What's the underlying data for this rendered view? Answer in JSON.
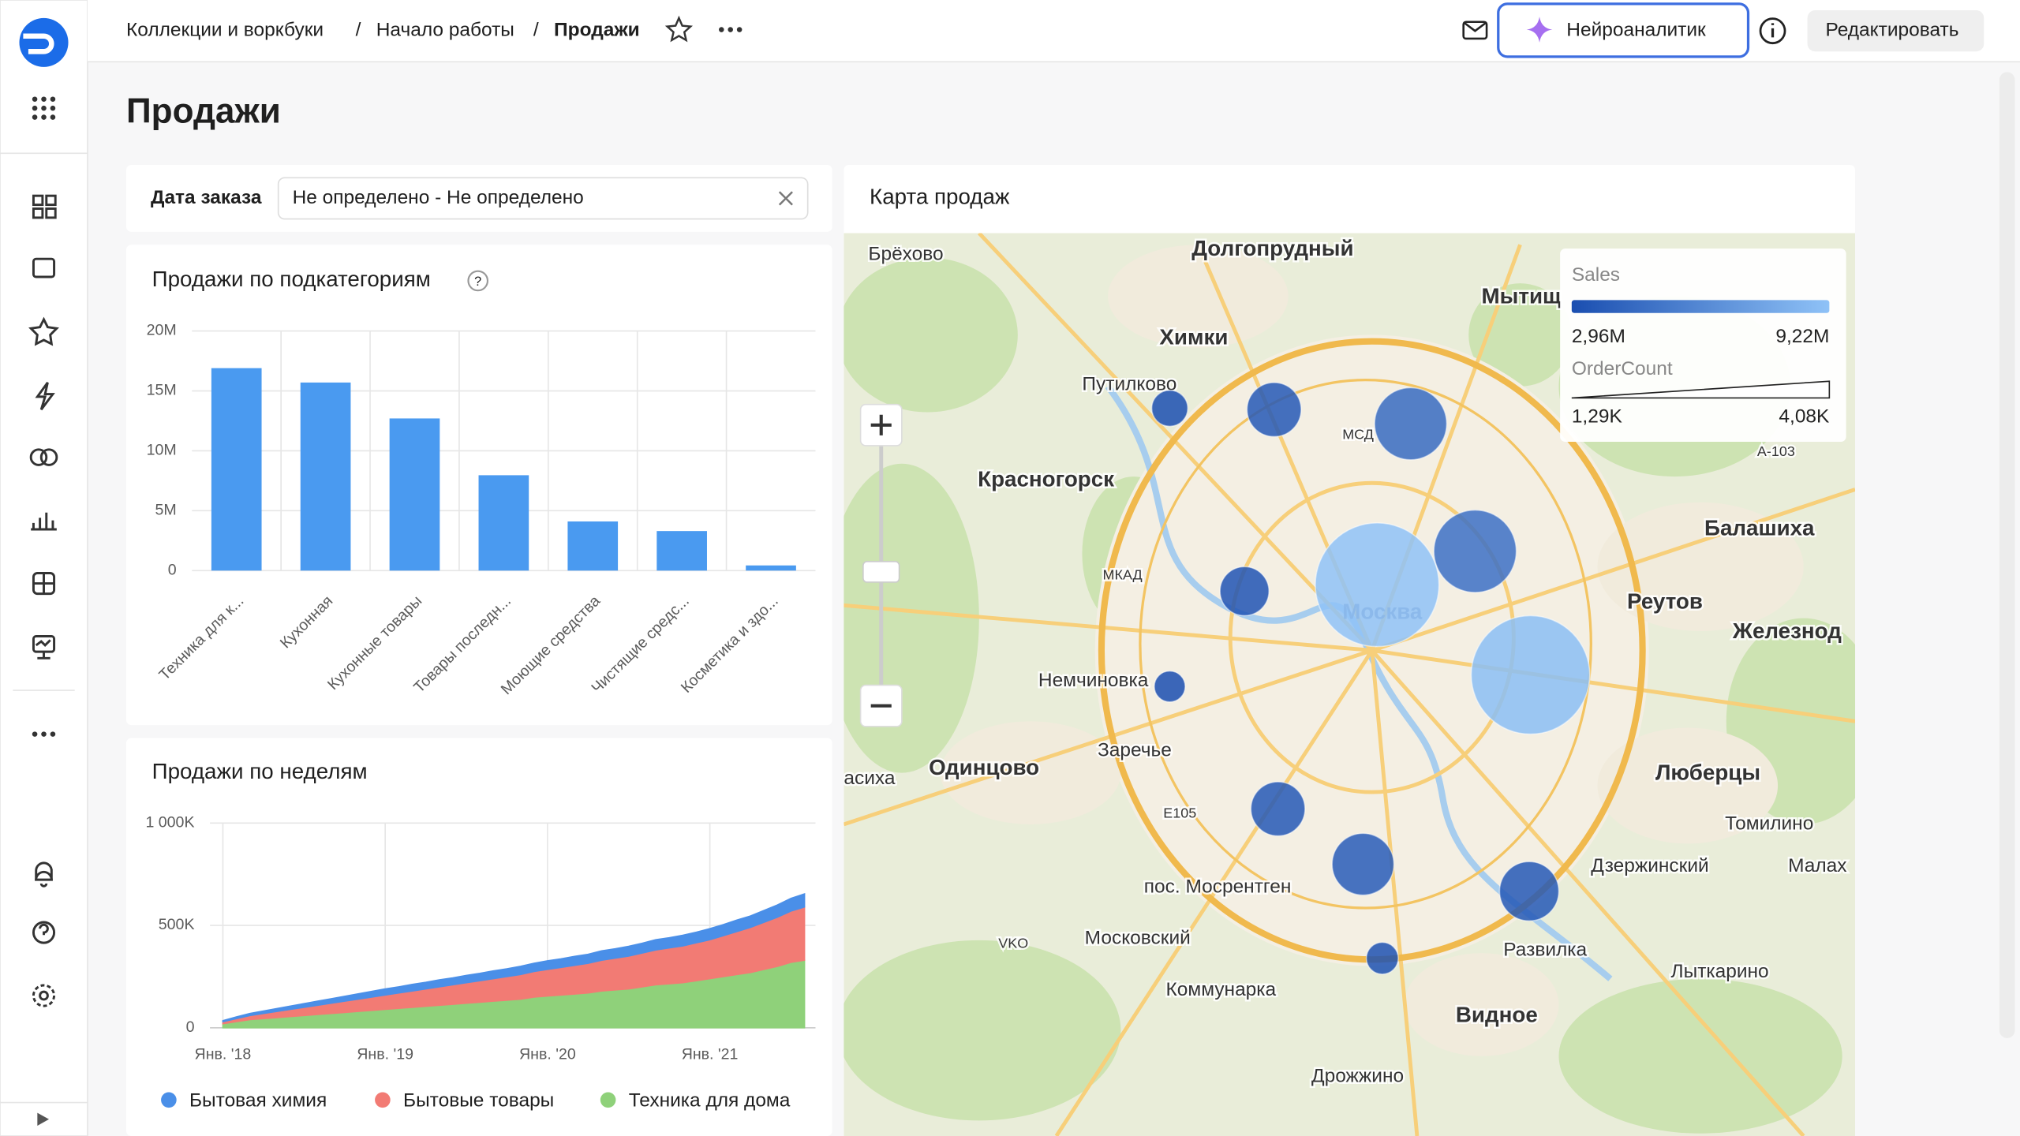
{
  "header": {
    "breadcrumbs": [
      "Коллекции и воркбуки",
      "Начало работы",
      "Продажи"
    ],
    "ai_button": "Нейроаналитик",
    "edit_button": "Редактировать"
  },
  "page_title": "Продажи",
  "filter": {
    "label": "Дата заказа",
    "value": "Не определено - Не определено"
  },
  "chart_data": [
    {
      "type": "bar",
      "title": "Продажи по подкатегориям",
      "categories": [
        "Техника для к...",
        "Кухонная",
        "Кухонные товары",
        "Товары последн...",
        "Моющие средства",
        "Чистящие средс...",
        "Косметика и здо..."
      ],
      "values": [
        16900000,
        15700000,
        12700000,
        7960000,
        4100000,
        3300000,
        430000
      ],
      "color": "#4a9af0",
      "ylim": [
        0,
        20000000
      ],
      "yticks": [
        0,
        {
          "value": 5000000,
          "label": "5M"
        },
        {
          "value": 10000000,
          "label": "10M"
        },
        {
          "value": 15000000,
          "label": "15M"
        },
        {
          "value": 20000000,
          "label": "20M"
        }
      ],
      "grid": true
    },
    {
      "type": "stacked_area",
      "title": "Продажи по неделям",
      "x": [
        "2018-01",
        "2018-02",
        "2018-03",
        "2018-04",
        "2018-05",
        "2018-06",
        "2018-07",
        "2018-08",
        "2018-09",
        "2018-10",
        "2018-11",
        "2018-12",
        "2019-01",
        "2019-02",
        "2019-03",
        "2019-04",
        "2019-05",
        "2019-06",
        "2019-07",
        "2019-08",
        "2019-09",
        "2019-10",
        "2019-11",
        "2019-12",
        "2020-01",
        "2020-02",
        "2020-03",
        "2020-04",
        "2020-05",
        "2020-06",
        "2020-07",
        "2020-08",
        "2020-09",
        "2020-10",
        "2020-11",
        "2020-12",
        "2021-01",
        "2021-02",
        "2021-03",
        "2021-04",
        "2021-05",
        "2021-06",
        "2021-07",
        "2021-08"
      ],
      "series": [
        {
          "name": "Бытовая химия",
          "color": "#4a8fe8",
          "values": [
            5000,
            8000,
            10000,
            12000,
            14000,
            16000,
            18000,
            20000,
            22000,
            24000,
            26000,
            28000,
            30000,
            30000,
            32000,
            32000,
            34000,
            34000,
            36000,
            36000,
            38000,
            38000,
            40000,
            40000,
            42000,
            42000,
            44000,
            44000,
            46000,
            46000,
            48000,
            48000,
            50000,
            50000,
            52000,
            52000,
            54000,
            54000,
            56000,
            56000,
            58000,
            60000,
            62000,
            64000
          ]
        },
        {
          "name": "Бытовые товары",
          "color": "#f27b74",
          "values": [
            10000,
            15000,
            20000,
            25000,
            30000,
            35000,
            40000,
            45000,
            50000,
            55000,
            60000,
            65000,
            70000,
            75000,
            80000,
            85000,
            90000,
            95000,
            100000,
            105000,
            110000,
            115000,
            120000,
            125000,
            130000,
            135000,
            140000,
            145000,
            150000,
            155000,
            160000,
            165000,
            170000,
            175000,
            180000,
            185000,
            190000,
            200000,
            210000,
            220000,
            230000,
            240000,
            250000,
            260000
          ]
        },
        {
          "name": "Техника для дома",
          "color": "#8fd17a",
          "values": [
            20000,
            30000,
            40000,
            45000,
            50000,
            55000,
            60000,
            65000,
            70000,
            75000,
            80000,
            85000,
            90000,
            95000,
            100000,
            105000,
            110000,
            115000,
            120000,
            125000,
            130000,
            135000,
            140000,
            150000,
            155000,
            160000,
            165000,
            170000,
            180000,
            185000,
            190000,
            200000,
            210000,
            215000,
            220000,
            230000,
            240000,
            250000,
            260000,
            270000,
            285000,
            300000,
            320000,
            330000
          ]
        }
      ],
      "ylim": [
        0,
        1000000
      ],
      "yticks": [
        0,
        {
          "value": 500000,
          "label": "500K"
        },
        {
          "value": 1000000,
          "label": "1 000K"
        }
      ],
      "xticks": [
        {
          "value": "2018-01",
          "label": "Янв. '18"
        },
        {
          "value": "2019-01",
          "label": "Янв. '19"
        },
        {
          "value": "2020-01",
          "label": "Янв. '20"
        },
        {
          "value": "2021-01",
          "label": "Янв. '21"
        }
      ],
      "grid": true,
      "legend": "bottom"
    }
  ],
  "map": {
    "title": "Карта продаж",
    "legend": {
      "sales_title": "Sales",
      "sales_min": {
        "value": 2960000,
        "label": "2,96M"
      },
      "sales_max": {
        "value": 9220000,
        "label": "9,22M"
      },
      "orders_title": "OrderCount",
      "orders_min": {
        "value": 1290,
        "label": "1,29K"
      },
      "orders_max": {
        "value": 4080,
        "label": "4,08K"
      }
    },
    "bubbles": [
      {
        "sales": 3000000,
        "orders": 1445
      },
      {
        "sales": 3500000,
        "orders": 1988
      },
      {
        "sales": 4500000,
        "orders": 2530
      },
      {
        "sales": 4800000,
        "orders": 2840
      },
      {
        "sales": 9220000,
        "orders": 4080
      },
      {
        "sales": 9000000,
        "orders": 3925
      },
      {
        "sales": 3300000,
        "orders": 1833
      },
      {
        "sales": 2960000,
        "orders": 1290
      },
      {
        "sales": 3500000,
        "orders": 1988
      },
      {
        "sales": 3700000,
        "orders": 2220
      },
      {
        "sales": 3500000,
        "orders": 2143
      },
      {
        "sales": 3100000,
        "orders": 1320
      }
    ],
    "places": [
      "Брёхово",
      "Долгопрудный",
      "Мытищ",
      "Химки",
      "Путилково",
      "Красногорск",
      "Балашиха",
      "Реутов",
      "Железнод",
      "Немчиновка",
      "Заречье",
      "Одинцово",
      "Люберцы",
      "Томилино",
      "Дзержинский",
      "Малах",
      "пос. Мосрентген",
      "Развилка",
      "Московский",
      "Лыткарино",
      "Коммунарка",
      "Видное",
      "Дрожжино",
      "асиха",
      "VKO",
      "E105",
      "A-103",
      "МКАД",
      "МСД",
      "Москва"
    ]
  }
}
